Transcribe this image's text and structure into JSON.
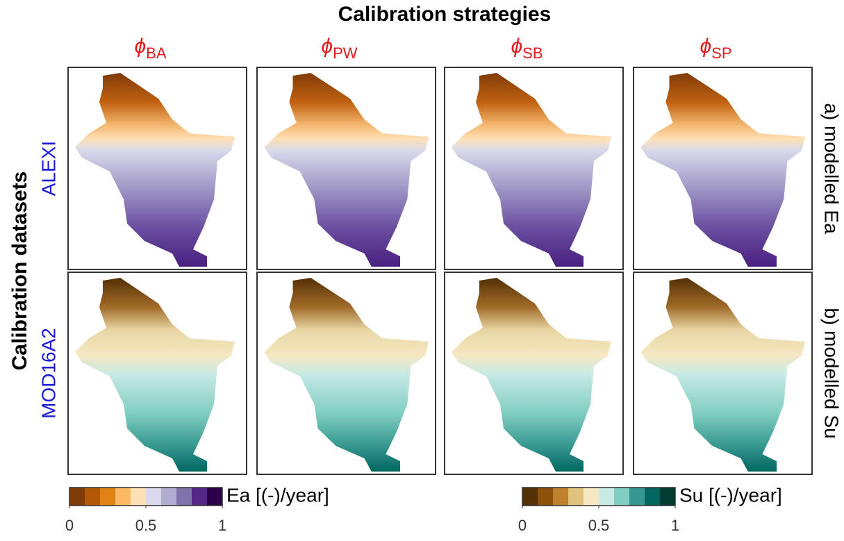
{
  "title": "Calibration strategies",
  "row_axis_label": "Calibration datasets",
  "columns": [
    {
      "symbol": "ϕ",
      "subscript": "BA"
    },
    {
      "symbol": "ϕ",
      "subscript": "PW"
    },
    {
      "symbol": "ϕ",
      "subscript": "SB"
    },
    {
      "symbol": "ϕ",
      "subscript": "SP"
    }
  ],
  "rows": [
    {
      "label": "ALEXI",
      "panel_label": "a) modelled Ea"
    },
    {
      "label": "MOD16A2",
      "panel_label": "b) modelled Su"
    }
  ],
  "colorbars": [
    {
      "label": "Ea [(-)/year]",
      "lim": [
        0,
        1
      ],
      "ticks": [
        0,
        0.5,
        1
      ],
      "colors": [
        "#7f3b08",
        "#b35806",
        "#e08214",
        "#fdb863",
        "#fee0b6",
        "#d8daeb",
        "#b2abd2",
        "#8073ac",
        "#542788",
        "#2d004b"
      ]
    },
    {
      "label": "Su [(-)/year]",
      "lim": [
        0,
        1
      ],
      "ticks": [
        0,
        0.5,
        1
      ],
      "colors": [
        "#543005",
        "#8c510a",
        "#bf812d",
        "#dfc27d",
        "#f6e8c3",
        "#c7eae5",
        "#80cdc1",
        "#35978f",
        "#01665e",
        "#003c30"
      ]
    }
  ]
}
